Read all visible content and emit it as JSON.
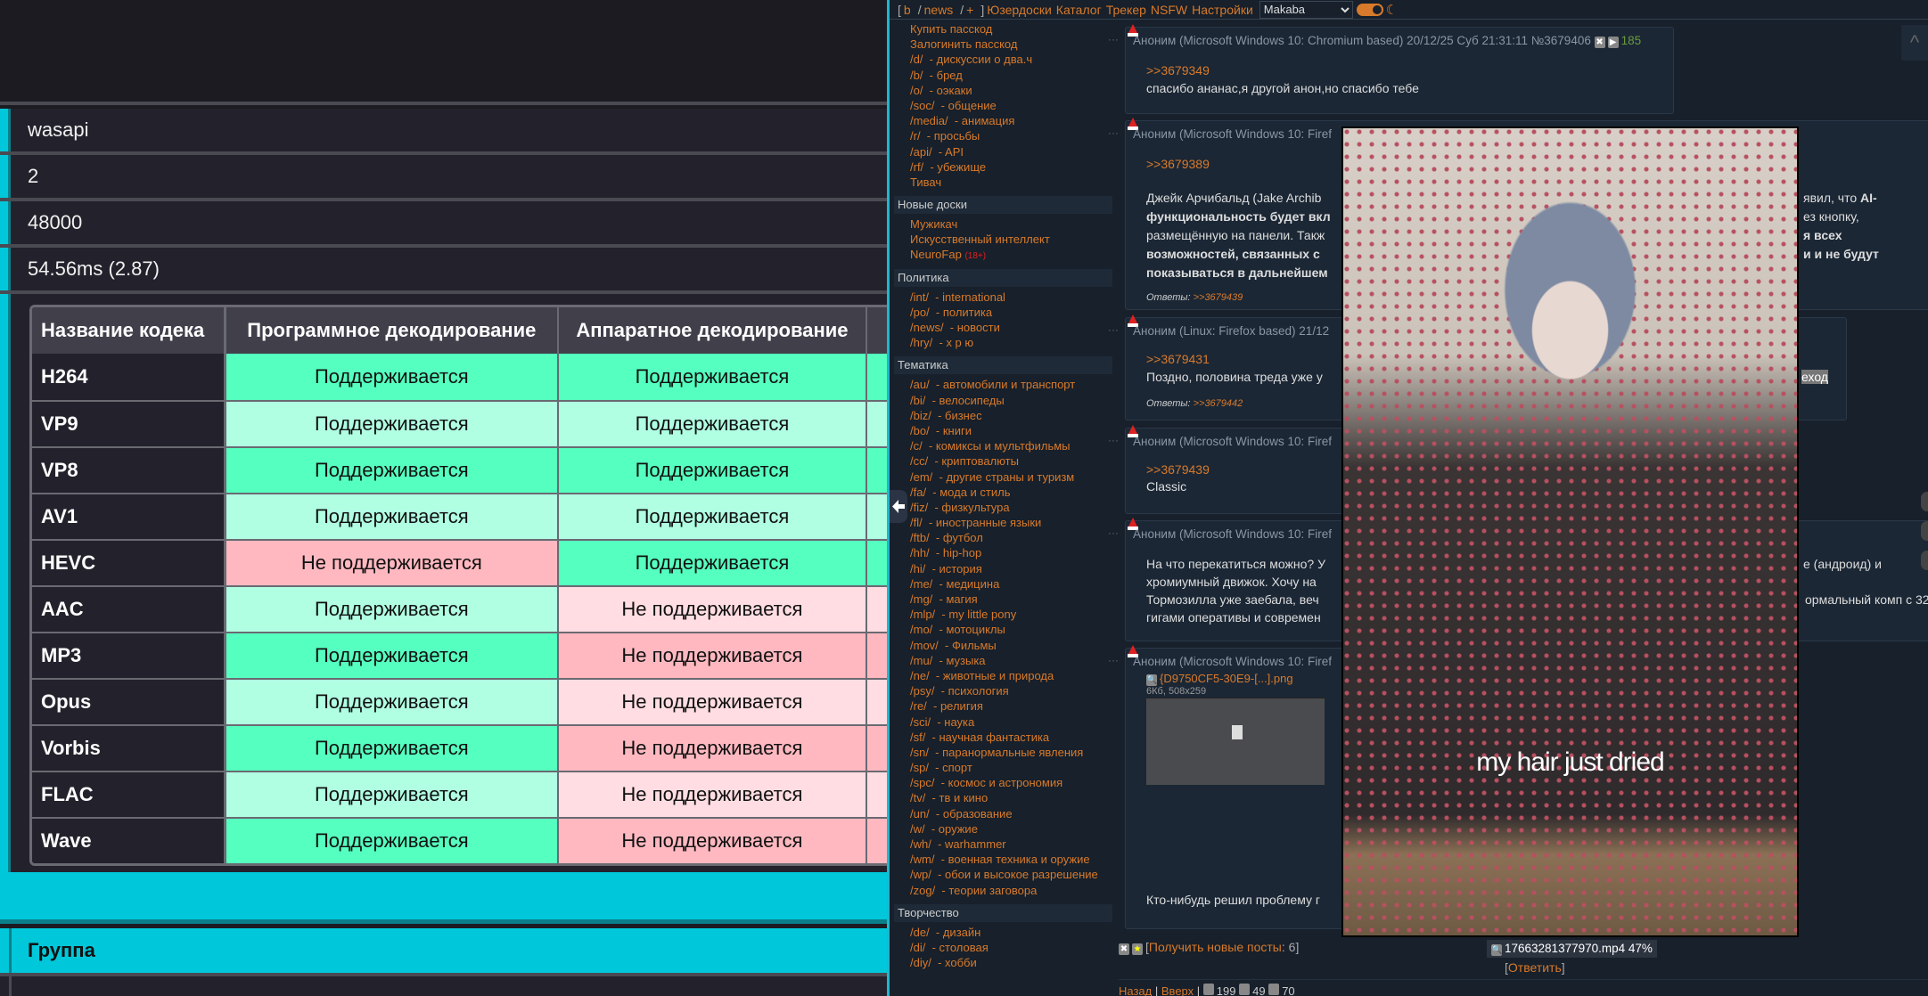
{
  "left_panel": {
    "rows": [
      "wasapi",
      "2",
      "48000",
      "54.56ms (2.87)"
    ],
    "codec_table": {
      "headers": [
        "Название кодека",
        "Программное декодирование",
        "Аппаратное декодирование"
      ],
      "rows": [
        {
          "codec": "H264",
          "software": "Поддерживается",
          "hardware": "Поддерживается"
        },
        {
          "codec": "VP9",
          "software": "Поддерживается",
          "hardware": "Поддерживается"
        },
        {
          "codec": "VP8",
          "software": "Поддерживается",
          "hardware": "Поддерживается"
        },
        {
          "codec": "AV1",
          "software": "Поддерживается",
          "hardware": "Поддерживается"
        },
        {
          "codec": "HEVC",
          "software": "Не поддерживается",
          "hardware": "Поддерживается"
        },
        {
          "codec": "AAC",
          "software": "Поддерживается",
          "hardware": "Не поддерживается"
        },
        {
          "codec": "MP3",
          "software": "Поддерживается",
          "hardware": "Не поддерживается"
        },
        {
          "codec": "Opus",
          "software": "Поддерживается",
          "hardware": "Не поддерживается"
        },
        {
          "codec": "Vorbis",
          "software": "Поддерживается",
          "hardware": "Не поддерживается"
        },
        {
          "codec": "FLAC",
          "software": "Поддерживается",
          "hardware": "Не поддерживается"
        },
        {
          "codec": "Wave",
          "software": "Поддерживается",
          "hardware": "Не поддерживается"
        }
      ]
    },
    "group_label": "Группа",
    "colors": {
      "accent": "#00c8da",
      "supported": "#55ffbf",
      "supported_alt": "#b0ffe2",
      "unsupported": "#ffb8c0",
      "unsupported_alt": "#ffdde2"
    }
  },
  "topbar": {
    "open": "[",
    "b": "b",
    "sep1": "/",
    "news": "news",
    "sep2": "/",
    "plus": "+",
    "close": "]",
    "links": [
      "Юзердоски",
      "Каталог",
      "Трекер",
      "NSFW",
      "Настройки"
    ],
    "style_select": "Makaba"
  },
  "sidebar": {
    "groups": [
      {
        "title": "",
        "items": [
          {
            "label": "Купить пасскод"
          },
          {
            "label": "Залогинить пасскод"
          },
          {
            "label": "/d/  - дискуссии о два.ч"
          },
          {
            "label": "/b/  - бред"
          },
          {
            "label": "/o/  - оэкаки"
          },
          {
            "label": "/soc/  - общение"
          },
          {
            "label": "/media/  - анимация"
          },
          {
            "label": "/r/  - просьбы"
          },
          {
            "label": "/api/  - API"
          },
          {
            "label": "/rf/  - убежище"
          },
          {
            "label": "Тивач"
          }
        ]
      },
      {
        "title": "Новые доски",
        "items": [
          {
            "label": "Мужикач"
          },
          {
            "label": "Искусственный интеллект"
          },
          {
            "label": "NeuroFap",
            "tag": "(18+)"
          }
        ]
      },
      {
        "title": "Политика",
        "items": [
          {
            "label": "/int/  - international"
          },
          {
            "label": "/po/  - политика"
          },
          {
            "label": "/news/  - новости"
          },
          {
            "label": "/hry/  - х р ю"
          }
        ]
      },
      {
        "title": "Тематика",
        "items": [
          {
            "label": "/au/  - автомобили и транспорт"
          },
          {
            "label": "/bi/  - велосипеды"
          },
          {
            "label": "/biz/  - бизнес"
          },
          {
            "label": "/bo/  - книги"
          },
          {
            "label": "/c/  - комиксы и мультфильмы"
          },
          {
            "label": "/cc/  - криптовалюты"
          },
          {
            "label": "/em/  - другие страны и туризм"
          },
          {
            "label": "/fa/  - мода и стиль"
          },
          {
            "label": "/fiz/  - физкультура"
          },
          {
            "label": "/fl/  - иностранные языки"
          },
          {
            "label": "/ftb/  - футбол"
          },
          {
            "label": "/hh/  - hip-hop"
          },
          {
            "label": "/hi/  - история"
          },
          {
            "label": "/me/  - медицина"
          },
          {
            "label": "/mg/  - магия"
          },
          {
            "label": "/mlp/  - my little pony"
          },
          {
            "label": "/mo/  - мотоциклы"
          },
          {
            "label": "/mov/  - Фильмы"
          },
          {
            "label": "/mu/  - музыка"
          },
          {
            "label": "/ne/  - животные и природа"
          },
          {
            "label": "/psy/  - психология"
          },
          {
            "label": "/re/  - религия"
          },
          {
            "label": "/sci/  - наука"
          },
          {
            "label": "/sf/  - научная фантастика"
          },
          {
            "label": "/sn/  - паранормальные явления"
          },
          {
            "label": "/sp/  - спорт"
          },
          {
            "label": "/spc/  - космос и астрономия"
          },
          {
            "label": "/tv/  - тв и кино"
          },
          {
            "label": "/un/  - образование"
          },
          {
            "label": "/w/  - оружие"
          },
          {
            "label": "/wh/  - warhammer"
          },
          {
            "label": "/wm/  - военная техника и оружие"
          },
          {
            "label": "/wp/  - обои и высокое разрешение"
          },
          {
            "label": "/zog/  - теории заговора"
          }
        ]
      },
      {
        "title": "Творчество",
        "items": [
          {
            "label": "/de/  - дизайн"
          },
          {
            "label": "/di/  - столовая"
          },
          {
            "label": "/diy/  - хобби"
          }
        ]
      }
    ]
  },
  "posts": [
    {
      "header": "Аноним (Microsoft Windows 10: Chromium based) 20/12/25 Суб 21:31:11 №3679406",
      "count": "185",
      "ref": ">>3679349",
      "text": "спасибо ананас,я другой анон,но спасибо тебе"
    },
    {
      "header": "Аноним (Microsoft Windows 10: Firef",
      "ref": ">>3679389",
      "lines": [
        {
          "left": "Джейк Арчибальд (Jake Archib",
          "right": "явил, что ",
          "right_bold": "AI-"
        },
        {
          "left_bold": "функциональность будет вкл",
          "right": "ез кнопку,"
        },
        {
          "left": "размещённую на панели. Такж",
          "right_bold": "я всех"
        },
        {
          "left_bold": "возможностей, связанных с",
          "right_bold": "и и не будут"
        },
        {
          "left_bold": "показываться в дальнейшем"
        }
      ],
      "answers_label": "Ответы:",
      "answers": ">>3679439"
    },
    {
      "header": "Аноним (Linux: Firefox based) 21/12",
      "ref": ">>3679431",
      "text": "Поздно, половина треда уже у",
      "text_right": "еход",
      "answers_label": "Ответы:",
      "answers": ">>3679442"
    },
    {
      "header": "Аноним (Microsoft Windows 10: Firef",
      "ref": ">>3679439",
      "text": "Classic"
    },
    {
      "header": "Аноним (Microsoft Windows 10: Firef",
      "lines": [
        {
          "left": "На что перекатиться можно? У",
          "right": "е (андроид) и"
        },
        {
          "left": "хромиумный движок. Хочу на"
        },
        {
          "left": "Тормозилла уже заебала, веч",
          "right": "ормальный комп с 32"
        },
        {
          "left": "гигами оперативы и современ"
        }
      ]
    },
    {
      "header": "Аноним (Microsoft Windows 10: Firef",
      "file": "{D9750CF5-30E9-[...].png",
      "file_meta": "6Кб, 508x259",
      "text": "Кто-нибудь решил проблему г"
    }
  ],
  "video": {
    "caption": "my hair just dried",
    "filename": "17663281377970.mp4 47%",
    "reply": "Ответить"
  },
  "new_posts": {
    "label": "Получить новые посты",
    "count": "6"
  },
  "footer": {
    "back": "Назад",
    "up": "Вверх",
    "posts": "199",
    "files": "49",
    "users": "70"
  }
}
